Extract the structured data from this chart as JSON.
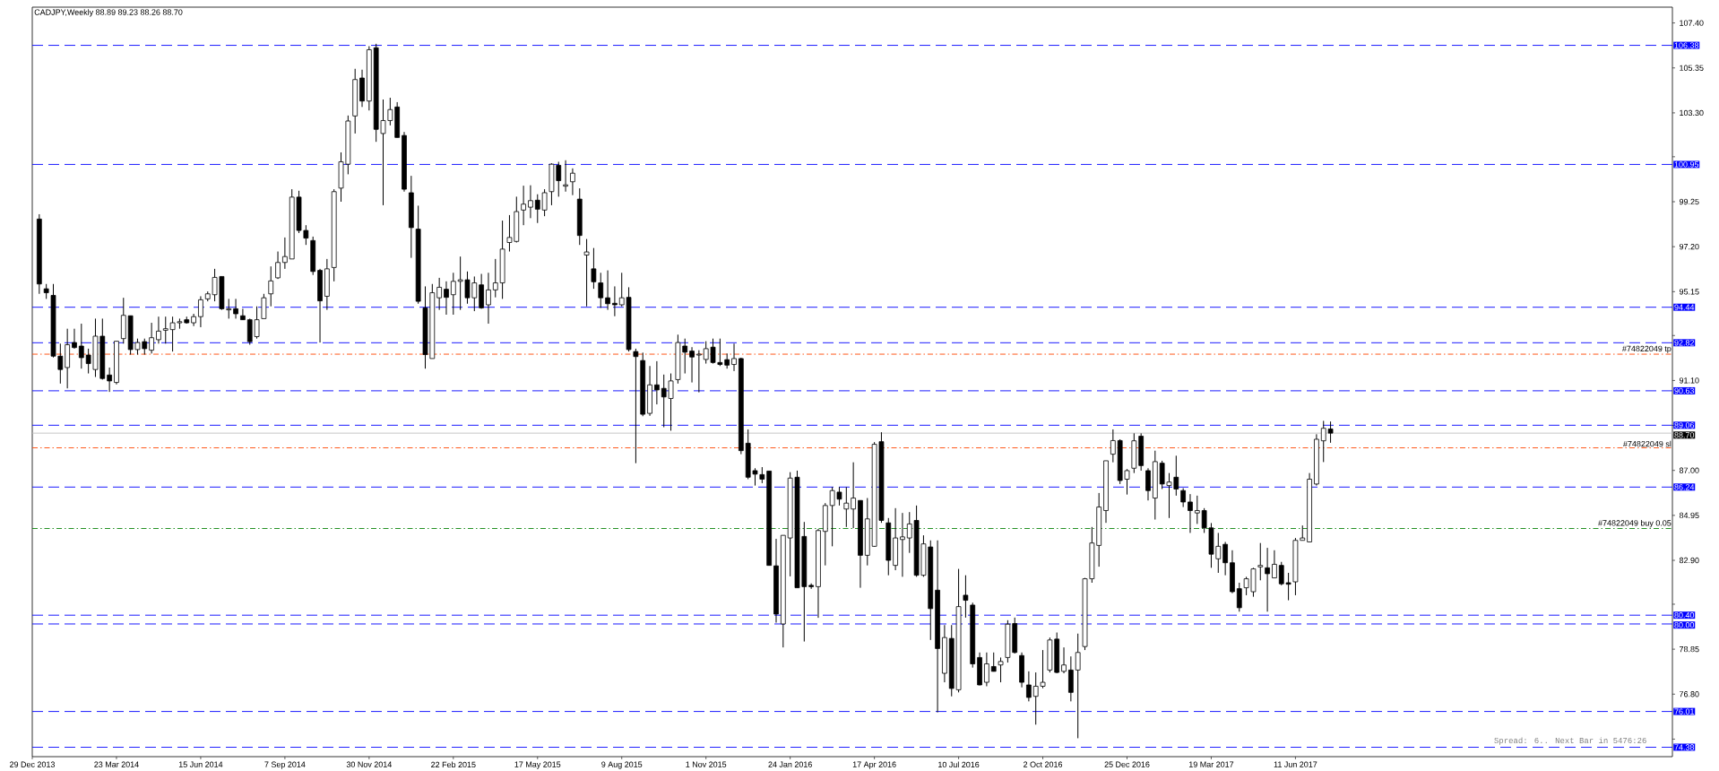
{
  "chart_data": {
    "type": "candlestick",
    "title": "CADJPY,Weekly 88.89 89.23 88.26 88.70",
    "annotations": [
      "Spread: 6.. Next Bar in 5476:26"
    ],
    "x": [
      "2014-01-05",
      "2014-01-12",
      "2014-01-19",
      "2014-01-26",
      "2014-02-02",
      "2014-02-09",
      "2014-02-16",
      "2014-02-23",
      "2014-03-02",
      "2014-03-09",
      "2014-03-16",
      "2014-03-23",
      "2014-03-30",
      "2014-04-06",
      "2014-04-13",
      "2014-04-20",
      "2014-04-27",
      "2014-05-04",
      "2014-05-11",
      "2014-05-18",
      "2014-05-25",
      "2014-06-01",
      "2014-06-08",
      "2014-06-15",
      "2014-06-22",
      "2014-06-29",
      "2014-07-06",
      "2014-07-13",
      "2014-07-20",
      "2014-07-27",
      "2014-08-03",
      "2014-08-10",
      "2014-08-17",
      "2014-08-24",
      "2014-08-31",
      "2014-09-07",
      "2014-09-14",
      "2014-09-21",
      "2014-09-28",
      "2014-10-05",
      "2014-10-12",
      "2014-10-19",
      "2014-10-26",
      "2014-11-02",
      "2014-11-09",
      "2014-11-16",
      "2014-11-23",
      "2014-11-30",
      "2014-12-07",
      "2014-12-14",
      "2014-12-21",
      "2014-12-28",
      "2015-01-04",
      "2015-01-11",
      "2015-01-18",
      "2015-01-25",
      "2015-02-01",
      "2015-02-08",
      "2015-02-15",
      "2015-02-22",
      "2015-03-01",
      "2015-03-08",
      "2015-03-15",
      "2015-03-22",
      "2015-03-29",
      "2015-04-05",
      "2015-04-12",
      "2015-04-19",
      "2015-04-26",
      "2015-05-03",
      "2015-05-10",
      "2015-05-17",
      "2015-05-24",
      "2015-05-31",
      "2015-06-07",
      "2015-06-14",
      "2015-06-21",
      "2015-06-28",
      "2015-07-05",
      "2015-07-12",
      "2015-07-19",
      "2015-07-26",
      "2015-08-02",
      "2015-08-09",
      "2015-08-16",
      "2015-08-23",
      "2015-08-30",
      "2015-09-06",
      "2015-09-13",
      "2015-09-20",
      "2015-09-27",
      "2015-10-04",
      "2015-10-11",
      "2015-10-18",
      "2015-10-25",
      "2015-11-01",
      "2015-11-08",
      "2015-11-15",
      "2015-11-22",
      "2015-11-29",
      "2015-12-06",
      "2015-12-13",
      "2015-12-20",
      "2015-12-27",
      "2016-01-03",
      "2016-01-10",
      "2016-01-17",
      "2016-01-24",
      "2016-01-31",
      "2016-02-07",
      "2016-02-14",
      "2016-02-21",
      "2016-02-28",
      "2016-03-06",
      "2016-03-13",
      "2016-03-20",
      "2016-03-27",
      "2016-04-03",
      "2016-04-10",
      "2016-04-17",
      "2016-04-24",
      "2016-05-01",
      "2016-05-08",
      "2016-05-15",
      "2016-05-22",
      "2016-05-29",
      "2016-06-05",
      "2016-06-12",
      "2016-06-19",
      "2016-06-26",
      "2016-07-03",
      "2016-07-10",
      "2016-07-17",
      "2016-07-24",
      "2016-07-31",
      "2016-08-07",
      "2016-08-14",
      "2016-08-21",
      "2016-08-28",
      "2016-09-04",
      "2016-09-11",
      "2016-09-18",
      "2016-09-25",
      "2016-10-02",
      "2016-10-09",
      "2016-10-16",
      "2016-10-23",
      "2016-10-30",
      "2016-11-06",
      "2016-11-13",
      "2016-11-20",
      "2016-11-27",
      "2016-12-04",
      "2016-12-11",
      "2016-12-18",
      "2016-12-25",
      "2017-01-01",
      "2017-01-08",
      "2017-01-15",
      "2017-01-22",
      "2017-01-29",
      "2017-02-05",
      "2017-02-12",
      "2017-02-19",
      "2017-02-26",
      "2017-03-05",
      "2017-03-12",
      "2017-03-19",
      "2017-03-26",
      "2017-04-02",
      "2017-04-09",
      "2017-04-16",
      "2017-04-23",
      "2017-04-30",
      "2017-05-07",
      "2017-05-14",
      "2017-05-21",
      "2017-05-28",
      "2017-06-04",
      "2017-06-11",
      "2017-06-18",
      "2017-06-25",
      "2017-07-02",
      "2017-07-09",
      "2017-07-16"
    ],
    "ohlc": [
      [
        98.46,
        98.68,
        95.05,
        95.5
      ],
      [
        95.28,
        95.5,
        94.82,
        95.1
      ],
      [
        94.98,
        95.5,
        92.15,
        92.21
      ],
      [
        92.21,
        92.78,
        90.96,
        91.6
      ],
      [
        91.69,
        93.46,
        90.74,
        92.73
      ],
      [
        92.83,
        93.46,
        92.55,
        92.6
      ],
      [
        92.67,
        93.69,
        91.64,
        92.14
      ],
      [
        92.26,
        92.55,
        91.42,
        91.87
      ],
      [
        91.6,
        93.92,
        91.26,
        93.12
      ],
      [
        93.12,
        93.92,
        91.14,
        91.19
      ],
      [
        91.35,
        91.69,
        90.58,
        91.08
      ],
      [
        91.01,
        92.89,
        90.92,
        92.89
      ],
      [
        93.01,
        94.87,
        92.78,
        94.07
      ],
      [
        94.05,
        94.05,
        92.28,
        92.51
      ],
      [
        92.51,
        93.01,
        92.28,
        92.83
      ],
      [
        92.87,
        93.01,
        92.28,
        92.55
      ],
      [
        92.48,
        93.73,
        92.33,
        93.05
      ],
      [
        92.96,
        94.01,
        92.78,
        93.35
      ],
      [
        93.39,
        94.01,
        92.78,
        93.46
      ],
      [
        93.42,
        94.01,
        92.42,
        93.73
      ],
      [
        93.73,
        93.92,
        93.46,
        93.78
      ],
      [
        93.87,
        94.01,
        93.69,
        93.73
      ],
      [
        93.73,
        94.14,
        93.58,
        94.01
      ],
      [
        94.01,
        94.94,
        93.53,
        94.78
      ],
      [
        94.82,
        95.16,
        94.71,
        95.05
      ],
      [
        95.01,
        96.19,
        94.71,
        95.8
      ],
      [
        95.84,
        95.84,
        94.32,
        94.37
      ],
      [
        94.32,
        94.82,
        93.92,
        94.37
      ],
      [
        94.37,
        94.82,
        93.92,
        94.14
      ],
      [
        94.05,
        94.37,
        93.87,
        93.87
      ],
      [
        93.87,
        93.92,
        92.73,
        92.87
      ],
      [
        93.1,
        94.48,
        93.01,
        93.87
      ],
      [
        93.92,
        95.05,
        93.92,
        94.87
      ],
      [
        95.05,
        96.3,
        94.48,
        95.64
      ],
      [
        95.78,
        96.98,
        95.73,
        96.48
      ],
      [
        96.48,
        97.62,
        96.19,
        96.75
      ],
      [
        96.64,
        99.82,
        96.64,
        99.46
      ],
      [
        99.46,
        99.75,
        97.82,
        97.94
      ],
      [
        97.94,
        98.18,
        97.28,
        97.59
      ],
      [
        97.48,
        97.66,
        95.91,
        96.07
      ],
      [
        96.12,
        96.19,
        92.83,
        94.73
      ],
      [
        94.94,
        96.64,
        94.32,
        96.19
      ],
      [
        96.25,
        99.82,
        95.62,
        99.71
      ],
      [
        99.87,
        101.5,
        99.25,
        101.07
      ],
      [
        100.96,
        103.18,
        100.5,
        102.93
      ],
      [
        103.16,
        105.31,
        102.36,
        104.82
      ],
      [
        104.89,
        105.27,
        103.57,
        103.84
      ],
      [
        103.84,
        106.34,
        103.41,
        106.18
      ],
      [
        106.27,
        106.45,
        101.98,
        102.55
      ],
      [
        102.36,
        103.91,
        99.09,
        102.95
      ],
      [
        102.95,
        103.99,
        102.73,
        103.45
      ],
      [
        103.57,
        103.79,
        102.18,
        102.18
      ],
      [
        102.27,
        102.43,
        99.71,
        99.82
      ],
      [
        99.66,
        100.43,
        96.69,
        98.07
      ],
      [
        98.0,
        99.07,
        94.6,
        94.71
      ],
      [
        94.41,
        95.39,
        91.64,
        92.28
      ],
      [
        92.1,
        95.5,
        92.1,
        95.1
      ],
      [
        94.87,
        95.78,
        94.32,
        95.35
      ],
      [
        95.26,
        95.62,
        94.1,
        94.89
      ],
      [
        95.01,
        96.01,
        94.1,
        95.62
      ],
      [
        95.62,
        96.75,
        94.32,
        95.69
      ],
      [
        95.69,
        96.07,
        94.6,
        94.87
      ],
      [
        94.87,
        95.84,
        94.26,
        95.55
      ],
      [
        95.46,
        95.96,
        94.37,
        94.41
      ],
      [
        94.55,
        96.01,
        93.69,
        95.23
      ],
      [
        95.23,
        96.64,
        94.89,
        95.55
      ],
      [
        95.55,
        98.39,
        94.82,
        97.09
      ],
      [
        97.39,
        98.64,
        96.98,
        97.62
      ],
      [
        97.44,
        99.48,
        97.39,
        98.8
      ],
      [
        98.87,
        99.98,
        98.18,
        99.14
      ],
      [
        99.0,
        100.0,
        98.5,
        99.3
      ],
      [
        99.32,
        99.59,
        98.28,
        98.91
      ],
      [
        98.87,
        99.82,
        98.59,
        99.66
      ],
      [
        99.71,
        101.0,
        99.09,
        100.96
      ],
      [
        100.91,
        101.07,
        99.48,
        100.21
      ],
      [
        99.96,
        101.14,
        99.71,
        100.02
      ],
      [
        100.16,
        100.77,
        99.55,
        100.55
      ],
      [
        99.37,
        99.86,
        97.28,
        97.71
      ],
      [
        96.82,
        97.55,
        94.48,
        96.96
      ],
      [
        96.19,
        97.14,
        95.28,
        95.6
      ],
      [
        95.55,
        96.01,
        94.41,
        94.87
      ],
      [
        94.87,
        96.12,
        94.32,
        94.6
      ],
      [
        94.62,
        95.39,
        94.03,
        94.55
      ],
      [
        94.55,
        96.01,
        94.48,
        94.87
      ],
      [
        94.89,
        95.35,
        92.42,
        92.51
      ],
      [
        92.42,
        92.55,
        87.33,
        92.19
      ],
      [
        92.01,
        92.37,
        89.47,
        89.56
      ],
      [
        89.6,
        91.76,
        89.49,
        90.9
      ],
      [
        90.9,
        91.98,
        90.01,
        90.67
      ],
      [
        90.74,
        91.37,
        88.97,
        90.35
      ],
      [
        90.28,
        91.42,
        88.81,
        91.08
      ],
      [
        91.14,
        93.19,
        90.96,
        92.83
      ],
      [
        92.67,
        93.01,
        91.42,
        92.39
      ],
      [
        92.44,
        92.62,
        91.01,
        92.17
      ],
      [
        92.26,
        92.48,
        90.56,
        92.3
      ],
      [
        92.06,
        92.89,
        91.87,
        92.55
      ],
      [
        92.62,
        93.01,
        91.87,
        91.92
      ],
      [
        91.92,
        93.01,
        91.76,
        91.83
      ],
      [
        92.05,
        92.33,
        91.64,
        91.8
      ],
      [
        91.83,
        92.78,
        91.53,
        92.1
      ],
      [
        92.1,
        92.14,
        87.74,
        87.9
      ],
      [
        88.24,
        88.87,
        86.6,
        86.69
      ],
      [
        86.99,
        87.1,
        86.31,
        86.83
      ],
      [
        86.81,
        87.15,
        86.42,
        86.6
      ],
      [
        86.97,
        86.97,
        82.67,
        82.67
      ],
      [
        82.65,
        83.88,
        80.06,
        80.45
      ],
      [
        80.0,
        84.04,
        78.93,
        84.04
      ],
      [
        83.92,
        86.92,
        82.17,
        86.65
      ],
      [
        86.69,
        86.99,
        81.65,
        81.65
      ],
      [
        83.99,
        84.65,
        79.2,
        81.7
      ],
      [
        81.76,
        81.85,
        81.6,
        81.7
      ],
      [
        81.7,
        84.33,
        80.28,
        84.26
      ],
      [
        84.22,
        85.51,
        82.67,
        85.4
      ],
      [
        85.4,
        86.24,
        83.54,
        86.08
      ],
      [
        86.01,
        86.24,
        85.4,
        85.69
      ],
      [
        85.24,
        86.24,
        84.42,
        85.51
      ],
      [
        85.24,
        87.37,
        84.37,
        85.74
      ],
      [
        85.63,
        85.63,
        81.65,
        83.13
      ],
      [
        83.13,
        85.74,
        82.67,
        84.79
      ],
      [
        83.54,
        88.29,
        83.52,
        88.19
      ],
      [
        88.31,
        88.74,
        84.61,
        84.72
      ],
      [
        84.61,
        84.83,
        82.22,
        82.9
      ],
      [
        82.67,
        85.28,
        82.45,
        83.92
      ],
      [
        83.85,
        85.06,
        82.15,
        83.97
      ],
      [
        83.92,
        85.1,
        83.24,
        84.56
      ],
      [
        84.72,
        85.4,
        82.15,
        82.22
      ],
      [
        82.22,
        84.04,
        82.15,
        83.65
      ],
      [
        83.51,
        83.81,
        79.27,
        80.7
      ],
      [
        81.54,
        83.81,
        75.97,
        78.88
      ],
      [
        77.75,
        79.95,
        77.34,
        79.38
      ],
      [
        79.34,
        79.95,
        76.7,
        77.06
      ],
      [
        77.0,
        82.51,
        76.88,
        80.79
      ],
      [
        81.31,
        82.22,
        80.29,
        81.08
      ],
      [
        80.86,
        80.97,
        78.01,
        78.18
      ],
      [
        78.47,
        78.7,
        77.2,
        77.22
      ],
      [
        77.34,
        78.7,
        77.16,
        78.18
      ],
      [
        78.06,
        78.7,
        77.83,
        77.84
      ],
      [
        78.13,
        78.47,
        77.34,
        78.29
      ],
      [
        78.47,
        80.17,
        78.24,
        79.99
      ],
      [
        80.02,
        80.29,
        78.65,
        78.7
      ],
      [
        78.56,
        78.7,
        77.11,
        77.34
      ],
      [
        77.22,
        77.84,
        76.47,
        76.65
      ],
      [
        76.7,
        77.79,
        75.41,
        77.16
      ],
      [
        77.16,
        78.81,
        77.07,
        77.34
      ],
      [
        77.9,
        79.38,
        77.79,
        79.27
      ],
      [
        79.31,
        79.61,
        77.75,
        77.79
      ],
      [
        77.84,
        78.93,
        77.75,
        78.13
      ],
      [
        77.9,
        78.52,
        76.47,
        76.88
      ],
      [
        77.9,
        79.56,
        74.79,
        78.7
      ],
      [
        78.97,
        82.1,
        78.81,
        82.06
      ],
      [
        82.06,
        84.42,
        81.88,
        83.69
      ],
      [
        83.58,
        85.97,
        82.61,
        85.33
      ],
      [
        85.17,
        87.44,
        84.61,
        87.44
      ],
      [
        87.74,
        88.87,
        87.37,
        88.36
      ],
      [
        88.36,
        88.42,
        86.38,
        86.54
      ],
      [
        86.6,
        87.06,
        85.9,
        86.99
      ],
      [
        87.1,
        88.69,
        86.88,
        88.35
      ],
      [
        88.56,
        88.69,
        86.99,
        87.22
      ],
      [
        86.99,
        87.1,
        85.63,
        86.08
      ],
      [
        85.74,
        87.9,
        84.76,
        87.4
      ],
      [
        87.33,
        87.44,
        86.15,
        86.38
      ],
      [
        86.31,
        86.88,
        84.83,
        86.47
      ],
      [
        86.69,
        87.67,
        85.85,
        86.15
      ],
      [
        86.08,
        86.19,
        85.33,
        85.56
      ],
      [
        85.56,
        85.92,
        84.15,
        85.17
      ],
      [
        85.06,
        85.85,
        84.56,
        85.17
      ],
      [
        85.17,
        85.28,
        84.15,
        84.38
      ],
      [
        84.38,
        84.6,
        82.56,
        83.18
      ],
      [
        82.97,
        84.15,
        82.33,
        83.54
      ],
      [
        83.63,
        83.74,
        82.22,
        82.79
      ],
      [
        82.79,
        83.36,
        81.4,
        81.47
      ],
      [
        81.61,
        81.88,
        80.56,
        80.74
      ],
      [
        81.65,
        82.15,
        81.31,
        82.06
      ],
      [
        81.47,
        82.56,
        81.24,
        82.51
      ],
      [
        82.6,
        83.69,
        81.99,
        82.67
      ],
      [
        82.56,
        83.47,
        80.56,
        82.29
      ],
      [
        82.1,
        83.36,
        82.1,
        82.72
      ],
      [
        82.67,
        82.83,
        81.76,
        81.83
      ],
      [
        81.88,
        82.33,
        81.08,
        81.81
      ],
      [
        81.92,
        83.92,
        81.31,
        83.81
      ],
      [
        83.81,
        84.49,
        83.81,
        83.92
      ],
      [
        83.74,
        86.88,
        83.74,
        86.6
      ],
      [
        86.38,
        88.65,
        86.31,
        88.42
      ],
      [
        88.35,
        89.26,
        87.38,
        88.92
      ],
      [
        88.89,
        89.23,
        88.26,
        88.7
      ]
    ],
    "xlim": [
      "2013-12-29",
      "2018-06-22"
    ],
    "xticks": [
      {
        "value": "2013-12-29",
        "label": "29 Dec 2013"
      },
      {
        "value": "2014-03-23",
        "label": "23 Mar 2014"
      },
      {
        "value": "2014-06-15",
        "label": "15 Jun 2014"
      },
      {
        "value": "2014-09-07",
        "label": "7 Sep 2014"
      },
      {
        "value": "2014-11-30",
        "label": "30 Nov 2014"
      },
      {
        "value": "2015-02-22",
        "label": "22 Feb 2015"
      },
      {
        "value": "2015-05-17",
        "label": "17 May 2015"
      },
      {
        "value": "2015-08-09",
        "label": "9 Aug 2015"
      },
      {
        "value": "2015-11-01",
        "label": "1 Nov 2015"
      },
      {
        "value": "2016-01-24",
        "label": "24 Jan 2016"
      },
      {
        "value": "2016-04-17",
        "label": "17 Apr 2016"
      },
      {
        "value": "2016-07-10",
        "label": "10 Jul 2016"
      },
      {
        "value": "2016-10-02",
        "label": "2 Oct 2016"
      },
      {
        "value": "2016-12-25",
        "label": "25 Dec 2016"
      },
      {
        "value": "2017-03-19",
        "label": "19 Mar 2017"
      },
      {
        "value": "2017-06-11",
        "label": "11 Jun 2017"
      }
    ],
    "ylim": [
      73.95,
      108.12
    ],
    "yticks": [
      {
        "value": 107.4,
        "label": "107.40"
      },
      {
        "value": 105.35,
        "label": "105.35"
      },
      {
        "value": 103.3,
        "label": "103.30"
      },
      {
        "value": 101.3,
        "label": null
      },
      {
        "value": 99.25,
        "label": "99.25"
      },
      {
        "value": 97.2,
        "label": "97.20"
      },
      {
        "value": 95.15,
        "label": "95.15"
      },
      {
        "value": 93.15,
        "label": null
      },
      {
        "value": 91.1,
        "label": "91.10"
      },
      {
        "value": 89.05,
        "label": null
      },
      {
        "value": 87.0,
        "label": "87.00"
      },
      {
        "value": 84.95,
        "label": "84.95"
      },
      {
        "value": 82.9,
        "label": "82.90"
      },
      {
        "value": 80.9,
        "label": null
      },
      {
        "value": 78.85,
        "label": "78.85"
      },
      {
        "value": 76.8,
        "label": "76.80"
      },
      {
        "value": 74.75,
        "label": null
      }
    ],
    "ref_lines": [
      {
        "axis": "y",
        "value": 106.38,
        "label": "106.38",
        "color": "#0000ff",
        "line_style": "dashed"
      },
      {
        "axis": "y",
        "value": 100.95,
        "label": "100.95",
        "color": "#0000ff",
        "line_style": "dashed"
      },
      {
        "axis": "y",
        "value": 94.44,
        "label": "94.44",
        "color": "#0000ff",
        "line_style": "dashed"
      },
      {
        "axis": "y",
        "value": 92.82,
        "label": "92.82",
        "color": "#0000ff",
        "line_style": "dashed"
      },
      {
        "axis": "y",
        "value": 90.63,
        "label": "90.63",
        "color": "#0000ff",
        "line_style": "dashed"
      },
      {
        "axis": "y",
        "value": 89.06,
        "label": "89.06",
        "color": "#0000ff",
        "line_style": "dashed"
      },
      {
        "axis": "y",
        "value": 86.24,
        "label": "86.24",
        "color": "#0000ff",
        "line_style": "dashed"
      },
      {
        "axis": "y",
        "value": 80.4,
        "label": "80.40",
        "color": "#0000ff",
        "line_style": "dashed"
      },
      {
        "axis": "y",
        "value": 80.0,
        "label": "80.00",
        "color": "#0000ff",
        "line_style": "dashed"
      },
      {
        "axis": "y",
        "value": 76.01,
        "label": "76.01",
        "color": "#0000ff",
        "line_style": "dashed"
      },
      {
        "axis": "y",
        "value": 74.38,
        "label": "74.38",
        "color": "#0000ff",
        "line_style": "dashed"
      },
      {
        "axis": "y",
        "value": 92.3,
        "label": "#74822049 tp",
        "color": "#ff4500",
        "line_style": "dashdot"
      },
      {
        "axis": "y",
        "value": 88.03,
        "label": "#74822049 sl",
        "color": "#ff4500",
        "line_style": "dashdot"
      },
      {
        "axis": "y",
        "value": 84.35,
        "label": "#74822049 buy 0.05",
        "color": "#008000",
        "line_style": "dashdot"
      },
      {
        "axis": "y",
        "value": 88.7,
        "label": "88.70",
        "color": "#c0c0c0",
        "line_style": "solid"
      }
    ]
  }
}
